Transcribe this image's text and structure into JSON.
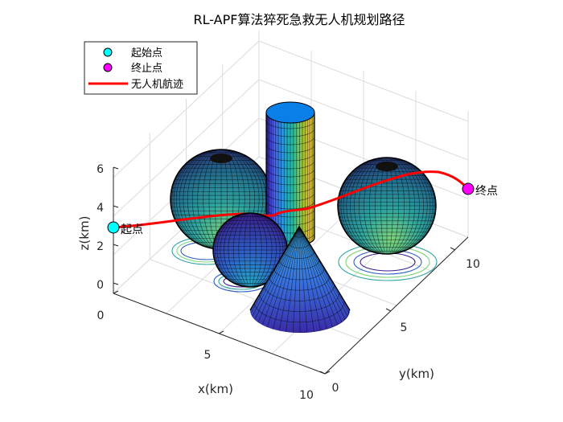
{
  "chart_data": {
    "type": "3d-surface-path",
    "title": "RL-APF算法猝死急救无人机规划路径",
    "xlabel": "x(km)",
    "ylabel": "y(km)",
    "zlabel": "z(km)",
    "xticks": [
      "0",
      "5",
      "10"
    ],
    "yticks": [
      "0",
      "5",
      "10"
    ],
    "zticks": [
      "0",
      "2",
      "4",
      "6"
    ],
    "xlim": [
      0,
      10
    ],
    "ylim": [
      0,
      12
    ],
    "zlim": [
      0,
      6.5
    ],
    "grid": true,
    "legend_position": "top-left",
    "legend": [
      {
        "label": "起始点",
        "kind": "marker",
        "color": "#00ffff"
      },
      {
        "label": "终止点",
        "kind": "marker",
        "color": "#ff00ff"
      },
      {
        "label": "无人机航迹",
        "kind": "line",
        "color": "#ff0000"
      }
    ],
    "start": {
      "x": 0,
      "y": 0,
      "z": 3,
      "label": "起点"
    },
    "end": {
      "x": 10,
      "y": 12,
      "z": 5,
      "label": "终点"
    },
    "path": [
      [
        0,
        0,
        3
      ],
      [
        1,
        1.2,
        3.2
      ],
      [
        2,
        2.4,
        3.4
      ],
      [
        3,
        3.6,
        3.6
      ],
      [
        4,
        4.8,
        3.7
      ],
      [
        5,
        6,
        3.8
      ],
      [
        6,
        7.2,
        4.0
      ],
      [
        7,
        8.4,
        4.3
      ],
      [
        8,
        9.6,
        4.8
      ],
      [
        9,
        10.8,
        5.1
      ],
      [
        10,
        12,
        5
      ]
    ],
    "obstacles": [
      {
        "type": "sphere",
        "center": [
          2,
          5,
          2.5
        ],
        "radius": 2.4
      },
      {
        "type": "sphere",
        "center": [
          4,
          3,
          1.5
        ],
        "radius": 1.5
      },
      {
        "type": "sphere",
        "center": [
          3,
          10,
          2.6
        ],
        "radius": 2.3
      },
      {
        "type": "cylinder",
        "center": [
          1.5,
          8
        ],
        "radius": 1.2,
        "height": 6.5
      },
      {
        "type": "cone",
        "center": [
          6,
          6
        ],
        "radius": 2.5,
        "height": 3.8
      }
    ],
    "colormap": "parula",
    "colors": {
      "path": "#ff0000",
      "start": "#00ffff",
      "end": "#ff00ff",
      "axis": "#262626",
      "grid": "#dcdcdc"
    }
  }
}
